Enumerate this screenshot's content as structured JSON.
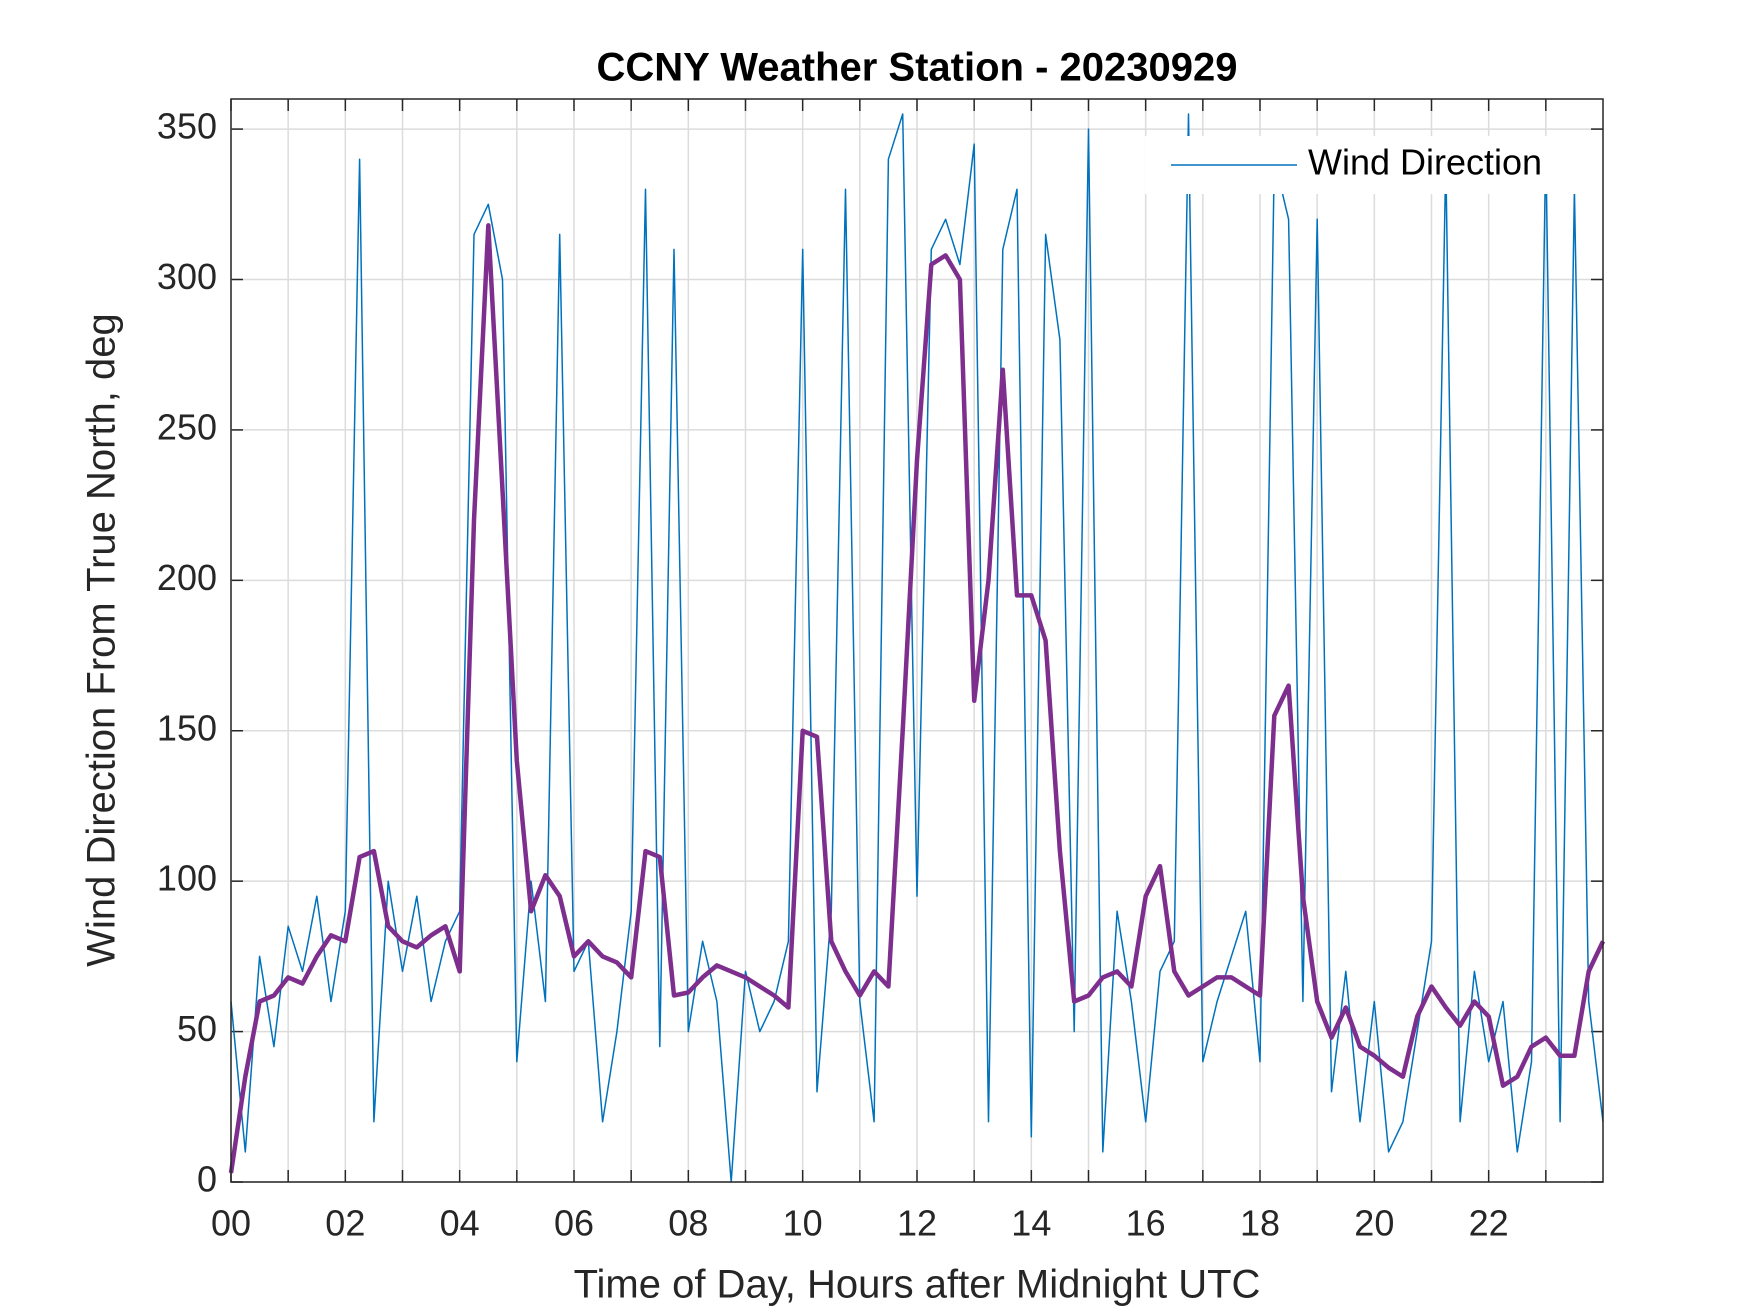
{
  "chart_data": {
    "type": "line",
    "title": "CCNY Weather Station - 20230929",
    "xlabel": "Time of Day, Hours after Midnight UTC",
    "ylabel": "Wind Direction From True North, deg",
    "xlim": [
      0,
      24
    ],
    "xticks": [
      {
        "value": 0,
        "label": "00"
      },
      {
        "value": 2,
        "label": "02"
      },
      {
        "value": 4,
        "label": "04"
      },
      {
        "value": 6,
        "label": "06"
      },
      {
        "value": 8,
        "label": "08"
      },
      {
        "value": 10,
        "label": "10"
      },
      {
        "value": 12,
        "label": "12"
      },
      {
        "value": 14,
        "label": "14"
      },
      {
        "value": 16,
        "label": "16"
      },
      {
        "value": 18,
        "label": "18"
      },
      {
        "value": 20,
        "label": "20"
      },
      {
        "value": 22,
        "label": "22"
      }
    ],
    "xminorticks": [
      1,
      3,
      5,
      7,
      9,
      11,
      13,
      15,
      17,
      19,
      21,
      23
    ],
    "ylim": [
      0,
      360
    ],
    "yticks": [
      0,
      50,
      100,
      150,
      200,
      250,
      300,
      350
    ],
    "grid": true,
    "legend": "northeast",
    "x": [
      0,
      0.25,
      0.5,
      0.75,
      1,
      1.25,
      1.5,
      1.75,
      2,
      2.25,
      2.5,
      2.75,
      3,
      3.25,
      3.5,
      3.75,
      4,
      4.25,
      4.5,
      4.75,
      5,
      5.25,
      5.5,
      5.75,
      6,
      6.25,
      6.5,
      6.75,
      7,
      7.25,
      7.5,
      7.75,
      8,
      8.25,
      8.5,
      8.75,
      9,
      9.25,
      9.5,
      9.75,
      10,
      10.25,
      10.5,
      10.75,
      11,
      11.25,
      11.5,
      11.75,
      12,
      12.25,
      12.5,
      12.75,
      13,
      13.25,
      13.5,
      13.75,
      14,
      14.25,
      14.5,
      14.75,
      15,
      15.25,
      15.5,
      15.75,
      16,
      16.25,
      16.5,
      16.75,
      17,
      17.25,
      17.5,
      17.75,
      18,
      18.25,
      18.5,
      18.75,
      19,
      19.25,
      19.5,
      19.75,
      20,
      20.25,
      20.5,
      20.75,
      21,
      21.25,
      21.5,
      21.75,
      22,
      22.25,
      22.5,
      22.75,
      23,
      23.25,
      23.5,
      23.75,
      24
    ],
    "series": [
      {
        "name": "Wind Direction",
        "color": "#0072bd",
        "width": 1.5,
        "values": [
          60,
          10,
          75,
          45,
          85,
          70,
          95,
          60,
          90,
          340,
          20,
          100,
          70,
          95,
          60,
          80,
          90,
          315,
          325,
          300,
          40,
          100,
          60,
          315,
          70,
          80,
          20,
          50,
          90,
          330,
          45,
          310,
          50,
          80,
          60,
          0,
          70,
          50,
          60,
          80,
          310,
          30,
          90,
          330,
          60,
          20,
          340,
          355,
          95,
          310,
          320,
          305,
          345,
          20,
          310,
          330,
          15,
          315,
          280,
          50,
          350,
          10,
          90,
          60,
          20,
          70,
          80,
          355,
          40,
          60,
          75,
          90,
          40,
          340,
          320,
          60,
          320,
          30,
          70,
          20,
          60,
          10,
          20,
          50,
          80,
          340,
          20,
          70,
          40,
          60,
          10,
          40,
          345,
          20,
          330,
          60,
          20
        ]
      },
      {
        "color": "#7e2f8e",
        "width": 4.5,
        "values": [
          3,
          35,
          60,
          62,
          68,
          66,
          75,
          82,
          80,
          108,
          110,
          85,
          80,
          78,
          82,
          85,
          70,
          220,
          318,
          230,
          140,
          90,
          102,
          95,
          75,
          80,
          75,
          73,
          68,
          110,
          108,
          62,
          63,
          68,
          72,
          70,
          68,
          65,
          62,
          58,
          150,
          148,
          80,
          70,
          62,
          70,
          65,
          150,
          240,
          305,
          308,
          300,
          160,
          200,
          270,
          195,
          195,
          180,
          110,
          60,
          62,
          68,
          70,
          65,
          95,
          105,
          70,
          62,
          65,
          68,
          68,
          65,
          62,
          155,
          165,
          95,
          60,
          48,
          58,
          45,
          42,
          38,
          35,
          55,
          65,
          58,
          52,
          60,
          55,
          32,
          35,
          45,
          48,
          42,
          42,
          70,
          80
        ]
      }
    ]
  }
}
